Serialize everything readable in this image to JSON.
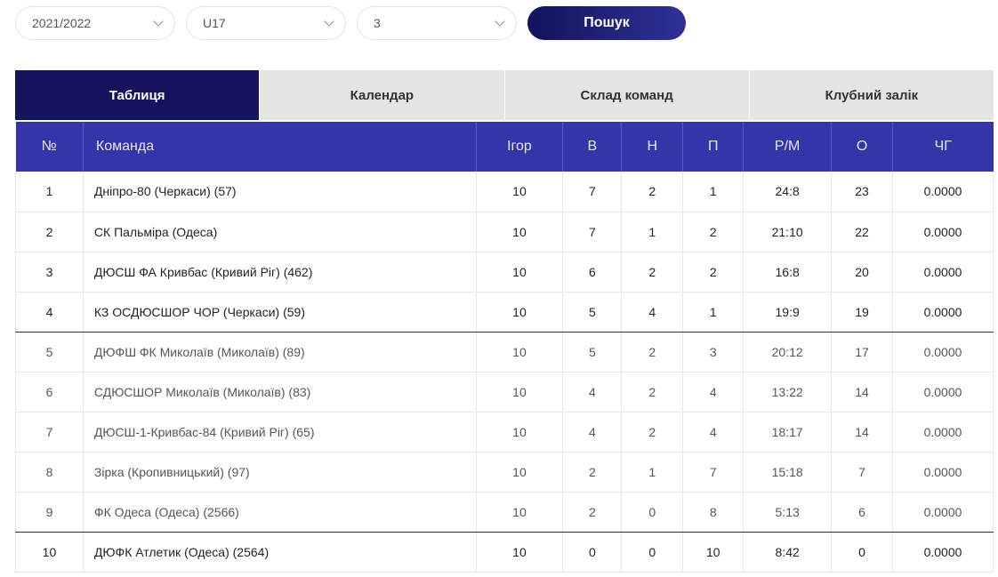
{
  "filters": {
    "season": "2021/2022",
    "age_group": "U17",
    "group": "3",
    "search_label": "Пошук"
  },
  "tabs": [
    "Таблиця",
    "Календар",
    "Склад команд",
    "Клубний залік"
  ],
  "table": {
    "headers": [
      "№",
      "Команда",
      "Ігор",
      "В",
      "Н",
      "П",
      "Р/М",
      "О",
      "ЧГ"
    ],
    "rows": [
      [
        "1",
        "Дніпро-80 (Черкаси) (57)",
        "10",
        "7",
        "2",
        "1",
        "24:8",
        "23",
        "0.0000"
      ],
      [
        "2",
        "СК Пальміра (Одеса)",
        "10",
        "7",
        "1",
        "2",
        "21:10",
        "22",
        "0.0000"
      ],
      [
        "3",
        "ДЮСШ ФА Кривбас (Кривий Ріг) (462)",
        "10",
        "6",
        "2",
        "2",
        "16:8",
        "20",
        "0.0000"
      ],
      [
        "4",
        "КЗ ОСДЮСШОР ЧОР (Черкаси) (59)",
        "10",
        "5",
        "4",
        "1",
        "19:9",
        "19",
        "0.0000"
      ],
      [
        "5",
        "ДЮФШ ФК Миколаїв (Миколаїв) (89)",
        "10",
        "5",
        "2",
        "3",
        "20:12",
        "17",
        "0.0000"
      ],
      [
        "6",
        "СДЮСШОР Миколаїв (Миколаїв) (83)",
        "10",
        "4",
        "2",
        "4",
        "13:22",
        "14",
        "0.0000"
      ],
      [
        "7",
        "ДЮСШ-1-Кривбас-84 (Кривий Ріг) (65)",
        "10",
        "4",
        "2",
        "4",
        "18:17",
        "14",
        "0.0000"
      ],
      [
        "8",
        "Зірка (Кропивницький) (97)",
        "10",
        "2",
        "1",
        "7",
        "15:18",
        "7",
        "0.0000"
      ],
      [
        "9",
        "ФК Одеса (Одеса) (2566)",
        "10",
        "2",
        "0",
        "8",
        "5:13",
        "6",
        "0.0000"
      ],
      [
        "10",
        "ДЮФК Атлетик (Одеса) (2564)",
        "10",
        "0",
        "0",
        "10",
        "8:42",
        "0",
        "0.0000"
      ]
    ]
  },
  "colors": {
    "header_bg": "#3335a8",
    "active_tab_bg": "#14145e",
    "inactive_tab_bg": "#e4e4e4"
  }
}
